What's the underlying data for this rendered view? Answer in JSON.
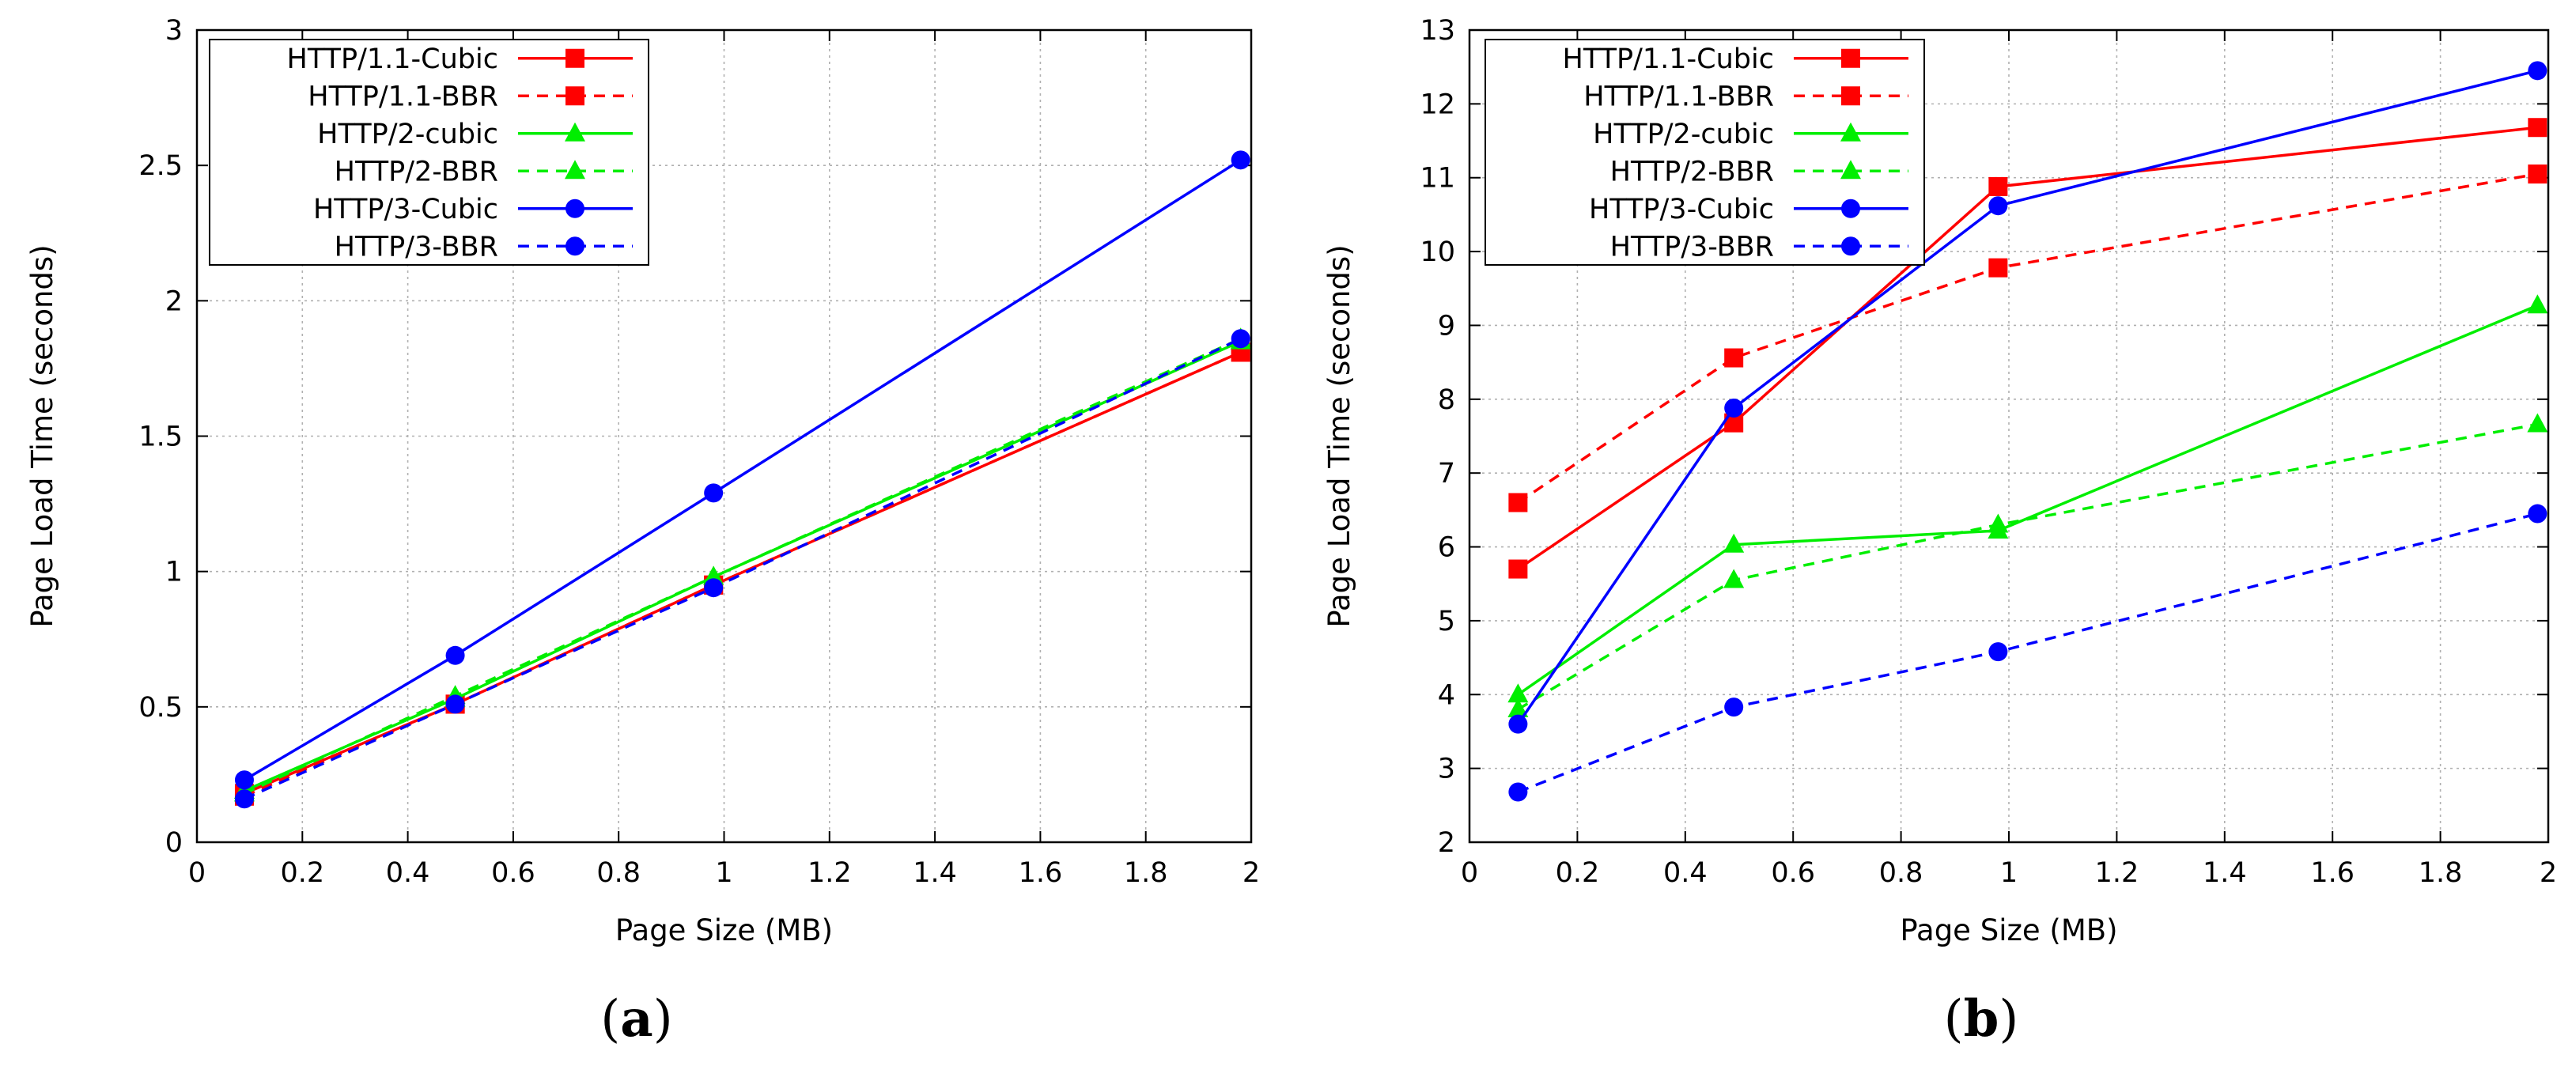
{
  "chart_data": [
    {
      "type": "line",
      "caption_letter": "a",
      "xlabel": "Page Size (MB)",
      "ylabel": "Page Load Time (seconds)",
      "xlim": [
        0,
        2
      ],
      "ylim": [
        0,
        3
      ],
      "xticks": [
        "0",
        "0.2",
        "0.4",
        "0.6",
        "0.8",
        "1",
        "1.2",
        "1.4",
        "1.6",
        "1.8",
        "2"
      ],
      "yticks": [
        "0",
        "0.5",
        "1",
        "1.5",
        "2",
        "2.5",
        "3"
      ],
      "grid": true,
      "legend_position": "top-left",
      "x": [
        0.09,
        0.49,
        0.98,
        1.98
      ],
      "series": [
        {
          "name": "HTTP/1.1-Cubic",
          "values": [
            0.18,
            0.51,
            0.95,
            1.81
          ],
          "color": "#ff0000",
          "dash": false,
          "marker": "square"
        },
        {
          "name": "HTTP/1.1-BBR",
          "values": [
            0.17,
            0.51,
            0.95,
            1.81
          ],
          "color": "#ff0000",
          "dash": true,
          "marker": "square"
        },
        {
          "name": "HTTP/2-cubic",
          "values": [
            0.19,
            0.53,
            0.98,
            1.85
          ],
          "color": "#00ee00",
          "dash": false,
          "marker": "triangle"
        },
        {
          "name": "HTTP/2-BBR",
          "values": [
            0.18,
            0.54,
            0.98,
            1.86
          ],
          "color": "#00ee00",
          "dash": true,
          "marker": "triangle"
        },
        {
          "name": "HTTP/3-Cubic",
          "values": [
            0.23,
            0.69,
            1.29,
            2.52
          ],
          "color": "#0000ff",
          "dash": false,
          "marker": "circle"
        },
        {
          "name": "HTTP/3-BBR",
          "values": [
            0.16,
            0.51,
            0.94,
            1.86
          ],
          "color": "#0000ff",
          "dash": true,
          "marker": "circle"
        }
      ]
    },
    {
      "type": "line",
      "caption_letter": "b",
      "xlabel": "Page Size (MB)",
      "ylabel": "Page Load Time (seconds)",
      "xlim": [
        0,
        2
      ],
      "ylim": [
        2,
        13
      ],
      "xticks": [
        "0",
        "0.2",
        "0.4",
        "0.6",
        "0.8",
        "1",
        "1.2",
        "1.4",
        "1.6",
        "1.8",
        "2"
      ],
      "yticks": [
        "2",
        "3",
        "4",
        "5",
        "6",
        "7",
        "8",
        "9",
        "10",
        "11",
        "12",
        "13"
      ],
      "grid": true,
      "legend_position": "top-left",
      "x": [
        0.09,
        0.49,
        0.98,
        1.98
      ],
      "series": [
        {
          "name": "HTTP/1.1-Cubic",
          "values": [
            5.7,
            7.68,
            10.88,
            11.68
          ],
          "color": "#ff0000",
          "dash": false,
          "marker": "square"
        },
        {
          "name": "HTTP/1.1-BBR",
          "values": [
            6.6,
            8.56,
            9.78,
            11.05
          ],
          "color": "#ff0000",
          "dash": true,
          "marker": "square"
        },
        {
          "name": "HTTP/2-cubic",
          "values": [
            4.0,
            6.03,
            6.22,
            9.27
          ],
          "color": "#00ee00",
          "dash": false,
          "marker": "triangle"
        },
        {
          "name": "HTTP/2-BBR",
          "values": [
            3.8,
            5.55,
            6.3,
            7.66
          ],
          "color": "#00ee00",
          "dash": true,
          "marker": "triangle"
        },
        {
          "name": "HTTP/3-Cubic",
          "values": [
            3.6,
            7.88,
            10.62,
            12.45
          ],
          "color": "#0000ff",
          "dash": false,
          "marker": "circle"
        },
        {
          "name": "HTTP/3-BBR",
          "values": [
            2.68,
            3.83,
            4.58,
            6.45
          ],
          "color": "#0000ff",
          "dash": true,
          "marker": "circle"
        }
      ]
    }
  ]
}
